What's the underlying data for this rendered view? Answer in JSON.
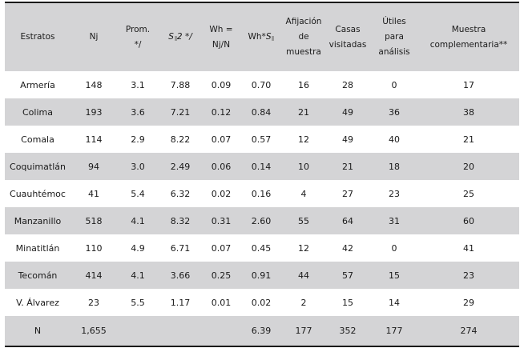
{
  "headers": {
    "estratos": "Estratos",
    "nj": "Nj",
    "prom_1": "Prom.",
    "prom_2": "*/",
    "s2_sym": "S",
    "s2_rest": "2 */",
    "wh_1": "Wh =",
    "wh_2": "Nj/N",
    "whs_1": "Wh*",
    "whs_sym": "S",
    "afijacion_1": "Afijación",
    "afijacion_2": "de",
    "afijacion_3": "muestra",
    "casas_1": "Casas",
    "casas_2": "visitadas",
    "utiles_1": "Útiles",
    "utiles_2": "para",
    "utiles_3": "análisis",
    "muestra_1": "Muestra",
    "muestra_2": "complementaria**"
  },
  "rows": [
    {
      "estrato": "Armería",
      "nj": "148",
      "prom": "3.1",
      "s2": "7.88",
      "wh": "0.09",
      "whs": "0.70",
      "afijacion": "16",
      "casas": "28",
      "utiles": "0",
      "complementaria": "17"
    },
    {
      "estrato": "Colima",
      "nj": "193",
      "prom": "3.6",
      "s2": "7.21",
      "wh": "0.12",
      "whs": "0.84",
      "afijacion": "21",
      "casas": "49",
      "utiles": "36",
      "complementaria": "38"
    },
    {
      "estrato": "Comala",
      "nj": "114",
      "prom": "2.9",
      "s2": "8.22",
      "wh": "0.07",
      "whs": "0.57",
      "afijacion": "12",
      "casas": "49",
      "utiles": "40",
      "complementaria": "21"
    },
    {
      "estrato": "Coquimatlán",
      "nj": "94",
      "prom": "3.0",
      "s2": "2.49",
      "wh": "0.06",
      "whs": "0.14",
      "afijacion": "10",
      "casas": "21",
      "utiles": "18",
      "complementaria": "20"
    },
    {
      "estrato": "Cuauhtémoc",
      "nj": "41",
      "prom": "5.4",
      "s2": "6.32",
      "wh": "0.02",
      "whs": "0.16",
      "afijacion": "4",
      "casas": "27",
      "utiles": "23",
      "complementaria": "25"
    },
    {
      "estrato": "Manzanillo",
      "nj": "518",
      "prom": "4.1",
      "s2": "8.32",
      "wh": "0.31",
      "whs": "2.60",
      "afijacion": "55",
      "casas": "64",
      "utiles": "31",
      "complementaria": "60"
    },
    {
      "estrato": "Minatitlán",
      "nj": "110",
      "prom": "4.9",
      "s2": "6.71",
      "wh": "0.07",
      "whs": "0.45",
      "afijacion": "12",
      "casas": "42",
      "utiles": "0",
      "complementaria": "41"
    },
    {
      "estrato": "Tecomán",
      "nj": "414",
      "prom": "4.1",
      "s2": "3.66",
      "wh": "0.25",
      "whs": "0.91",
      "afijacion": "44",
      "casas": "57",
      "utiles": "15",
      "complementaria": "23"
    },
    {
      "estrato": "V. Álvarez",
      "nj": "23",
      "prom": "5.5",
      "s2": "1.17",
      "wh": "0.01",
      "whs": "0.02",
      "afijacion": "2",
      "casas": "15",
      "utiles": "14",
      "complementaria": "29"
    }
  ],
  "total": {
    "estrato": "N",
    "nj": "1,655",
    "prom": "",
    "s2": "",
    "wh": "",
    "whs": "6.39",
    "afijacion": "177",
    "casas": "352",
    "utiles": "177",
    "complementaria": "274"
  },
  "colors": {
    "shade": "#d4d4d6",
    "rule": "#1a1a1a"
  }
}
